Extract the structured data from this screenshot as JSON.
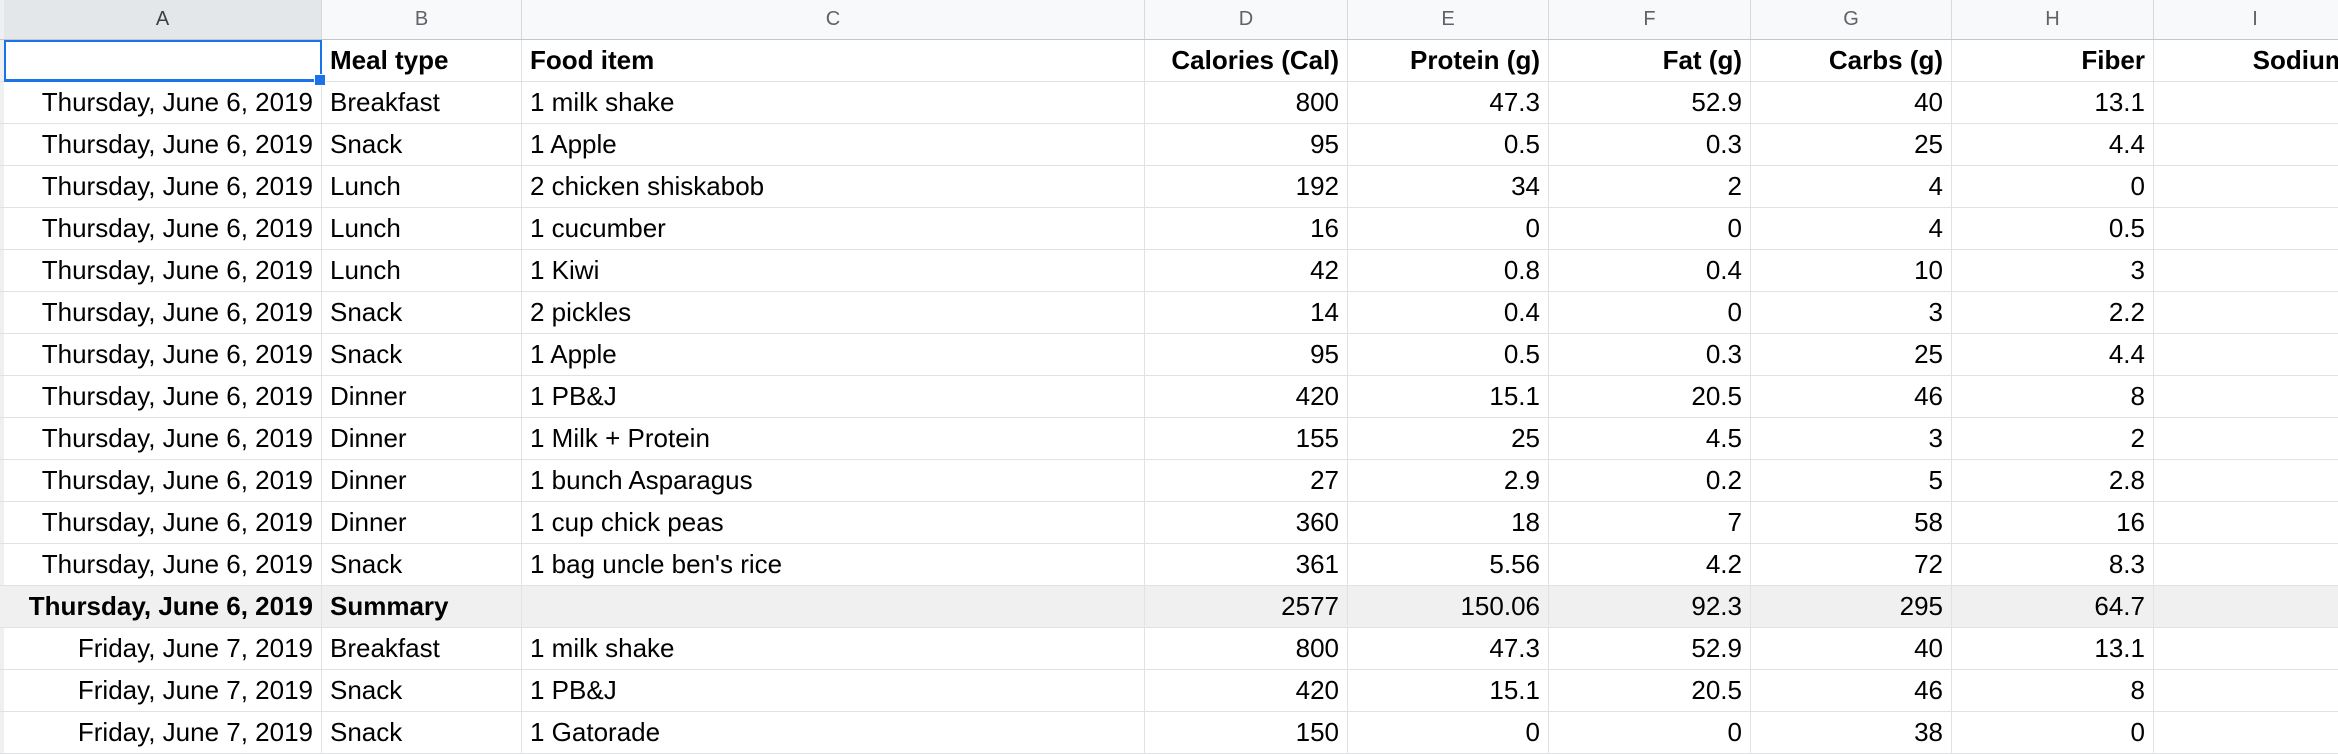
{
  "app": {
    "type": "spreadsheet-grid"
  },
  "colors": {
    "selection_accent": "#1a73e8",
    "column_header_bg": "#f8f9fa",
    "selected_column_header_bg": "#e4e7ea",
    "summary_row_bg": "#f0f0f0",
    "gridline": "#e1e2e3"
  },
  "column_headers": [
    "A",
    "B",
    "C",
    "D",
    "E",
    "F",
    "G",
    "H",
    "I"
  ],
  "selection": {
    "column": "A",
    "row_index": 0
  },
  "sheet": {
    "column_keys": [
      "date",
      "meal",
      "food",
      "calories",
      "protein",
      "fat",
      "carbs",
      "fiber",
      "sodium"
    ],
    "rows": [
      {
        "bold": true,
        "date": "",
        "meal": "Meal type",
        "food": "Food item",
        "calories": "Calories (Cal)",
        "protein": "Protein (g)",
        "fat": "Fat (g)",
        "carbs": "Carbs (g)",
        "fiber": "Fiber",
        "sodium": "Sodium"
      },
      {
        "date": "Thursday, June 6, 2019",
        "meal": "Breakfast",
        "food": "1 milk shake",
        "calories": "800",
        "protein": "47.3",
        "fat": "52.9",
        "carbs": "40",
        "fiber": "13.1",
        "sodium": ""
      },
      {
        "date": "Thursday, June 6, 2019",
        "meal": "Snack",
        "food": "1 Apple",
        "calories": "95",
        "protein": "0.5",
        "fat": "0.3",
        "carbs": "25",
        "fiber": "4.4",
        "sodium": ""
      },
      {
        "date": "Thursday, June 6, 2019",
        "meal": "Lunch",
        "food": "2 chicken shiskabob",
        "calories": "192",
        "protein": "34",
        "fat": "2",
        "carbs": "4",
        "fiber": "0",
        "sodium": ""
      },
      {
        "date": "Thursday, June 6, 2019",
        "meal": "Lunch",
        "food": "1 cucumber",
        "calories": "16",
        "protein": "0",
        "fat": "0",
        "carbs": "4",
        "fiber": "0.5",
        "sodium": ""
      },
      {
        "date": "Thursday, June 6, 2019",
        "meal": "Lunch",
        "food": "1 Kiwi",
        "calories": "42",
        "protein": "0.8",
        "fat": "0.4",
        "carbs": "10",
        "fiber": "3",
        "sodium": ""
      },
      {
        "date": "Thursday, June 6, 2019",
        "meal": "Snack",
        "food": "2 pickles",
        "calories": "14",
        "protein": "0.4",
        "fat": "0",
        "carbs": "3",
        "fiber": "2.2",
        "sodium": ""
      },
      {
        "date": "Thursday, June 6, 2019",
        "meal": "Snack",
        "food": "1 Apple",
        "calories": "95",
        "protein": "0.5",
        "fat": "0.3",
        "carbs": "25",
        "fiber": "4.4",
        "sodium": ""
      },
      {
        "date": "Thursday, June 6, 2019",
        "meal": "Dinner",
        "food": "1 PB&J",
        "calories": "420",
        "protein": "15.1",
        "fat": "20.5",
        "carbs": "46",
        "fiber": "8",
        "sodium": ""
      },
      {
        "date": "Thursday, June 6, 2019",
        "meal": "Dinner",
        "food": "1 Milk + Protein",
        "calories": "155",
        "protein": "25",
        "fat": "4.5",
        "carbs": "3",
        "fiber": "2",
        "sodium": ""
      },
      {
        "date": "Thursday, June 6, 2019",
        "meal": "Dinner",
        "food": "1 bunch Asparagus",
        "calories": "27",
        "protein": "2.9",
        "fat": "0.2",
        "carbs": "5",
        "fiber": "2.8",
        "sodium": ""
      },
      {
        "date": "Thursday, June 6, 2019",
        "meal": "Dinner",
        "food": "1 cup chick peas",
        "calories": "360",
        "protein": "18",
        "fat": "7",
        "carbs": "58",
        "fiber": "16",
        "sodium": ""
      },
      {
        "date": "Thursday, June 6, 2019",
        "meal": "Snack",
        "food": "1 bag uncle ben's rice",
        "calories": "361",
        "protein": "5.56",
        "fat": "4.2",
        "carbs": "72",
        "fiber": "8.3",
        "sodium": ""
      },
      {
        "summary": true,
        "date": "Thursday, June 6, 2019",
        "meal": "Summary",
        "food": "",
        "calories": "2577",
        "protein": "150.06",
        "fat": "92.3",
        "carbs": "295",
        "fiber": "64.7",
        "sodium": ""
      },
      {
        "date": "Friday, June 7, 2019",
        "meal": "Breakfast",
        "food": "1 milk shake",
        "calories": "800",
        "protein": "47.3",
        "fat": "52.9",
        "carbs": "40",
        "fiber": "13.1",
        "sodium": ""
      },
      {
        "date": "Friday, June 7, 2019",
        "meal": "Snack",
        "food": "1 PB&J",
        "calories": "420",
        "protein": "15.1",
        "fat": "20.5",
        "carbs": "46",
        "fiber": "8",
        "sodium": ""
      },
      {
        "date": "Friday, June 7, 2019",
        "meal": "Snack",
        "food": "1 Gatorade",
        "calories": "150",
        "protein": "0",
        "fat": "0",
        "carbs": "38",
        "fiber": "0",
        "sodium": ""
      }
    ]
  }
}
